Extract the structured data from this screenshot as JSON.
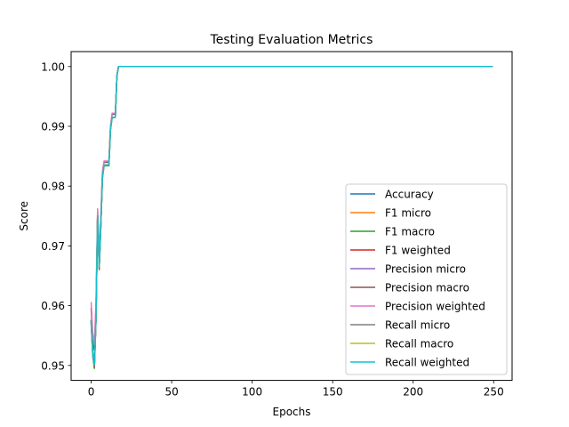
{
  "chart_data": {
    "type": "line",
    "title": "Testing Evaluation Metrics",
    "xlabel": "Epochs",
    "ylabel": "Score",
    "xlim": [
      -12.45,
      261.45
    ],
    "ylim": [
      0.9475,
      1.0025
    ],
    "xticks": [
      0,
      50,
      100,
      150,
      200,
      250
    ],
    "xtick_labels": [
      "0",
      "50",
      "100",
      "150",
      "200",
      "250"
    ],
    "yticks": [
      0.95,
      0.96,
      0.97,
      0.98,
      0.99,
      1.0
    ],
    "ytick_labels": [
      "0.95",
      "0.96",
      "0.97",
      "0.98",
      "0.99",
      "1.00"
    ],
    "grid": false,
    "legend_position": "lower right",
    "x_start": 0,
    "x_end": 249,
    "series": [
      {
        "name": "Accuracy",
        "color": "#1f77b4",
        "values": [
          0.9575,
          0.952,
          0.95,
          0.958,
          0.975,
          0.9665,
          0.9735,
          0.9815,
          0.9835,
          0.9835,
          0.9835,
          0.9835,
          0.9895,
          0.9915,
          0.9915,
          0.9915,
          0.9985,
          1.0
        ]
      },
      {
        "name": "F1 micro",
        "color": "#ff7f0e",
        "values": [
          0.9575,
          0.952,
          0.95,
          0.958,
          0.975,
          0.9665,
          0.9735,
          0.9815,
          0.9835,
          0.9835,
          0.9835,
          0.9835,
          0.9895,
          0.9915,
          0.9915,
          0.9915,
          0.9985,
          1.0
        ]
      },
      {
        "name": "F1 macro",
        "color": "#2ca02c",
        "values": [
          0.957,
          0.9515,
          0.9495,
          0.9575,
          0.9748,
          0.966,
          0.9732,
          0.9813,
          0.9834,
          0.9834,
          0.9834,
          0.9834,
          0.9894,
          0.9915,
          0.9915,
          0.9915,
          0.9985,
          1.0
        ]
      },
      {
        "name": "F1 weighted",
        "color": "#d62728",
        "values": [
          0.9572,
          0.9518,
          0.9498,
          0.9578,
          0.9749,
          0.9663,
          0.9734,
          0.9814,
          0.9835,
          0.9835,
          0.9835,
          0.9835,
          0.9895,
          0.9915,
          0.9915,
          0.9915,
          0.9985,
          1.0
        ]
      },
      {
        "name": "Precision micro",
        "color": "#9467bd",
        "values": [
          0.9575,
          0.952,
          0.95,
          0.958,
          0.975,
          0.9665,
          0.9735,
          0.9815,
          0.9835,
          0.9835,
          0.9835,
          0.9835,
          0.9895,
          0.9915,
          0.9915,
          0.9915,
          0.9985,
          1.0
        ]
      },
      {
        "name": "Precision macro",
        "color": "#8c564b",
        "values": [
          0.9595,
          0.9545,
          0.9525,
          0.9598,
          0.9758,
          0.968,
          0.9745,
          0.9822,
          0.984,
          0.984,
          0.984,
          0.984,
          0.9898,
          0.992,
          0.992,
          0.992,
          0.9985,
          1.0
        ]
      },
      {
        "name": "Precision weighted",
        "color": "#e377c2",
        "values": [
          0.9605,
          0.9555,
          0.9535,
          0.9605,
          0.9762,
          0.9688,
          0.975,
          0.9825,
          0.9842,
          0.9842,
          0.9842,
          0.9842,
          0.99,
          0.9922,
          0.9922,
          0.9922,
          0.9985,
          1.0
        ]
      },
      {
        "name": "Recall micro",
        "color": "#7f7f7f",
        "values": [
          0.9575,
          0.952,
          0.95,
          0.958,
          0.975,
          0.9665,
          0.9735,
          0.9815,
          0.9835,
          0.9835,
          0.9835,
          0.9835,
          0.9895,
          0.9915,
          0.9915,
          0.9915,
          0.9985,
          1.0
        ]
      },
      {
        "name": "Recall macro",
        "color": "#bcbd22",
        "values": [
          0.9575,
          0.952,
          0.95,
          0.958,
          0.975,
          0.9665,
          0.9735,
          0.9815,
          0.9835,
          0.9835,
          0.9835,
          0.9835,
          0.9895,
          0.9915,
          0.9915,
          0.9915,
          0.9985,
          1.0
        ]
      },
      {
        "name": "Recall weighted",
        "color": "#17becf",
        "values": [
          0.9575,
          0.952,
          0.95,
          0.958,
          0.975,
          0.9665,
          0.9735,
          0.9815,
          0.9835,
          0.9835,
          0.9835,
          0.9835,
          0.9895,
          0.9915,
          0.9915,
          0.9915,
          0.9985,
          1.0
        ]
      }
    ]
  }
}
